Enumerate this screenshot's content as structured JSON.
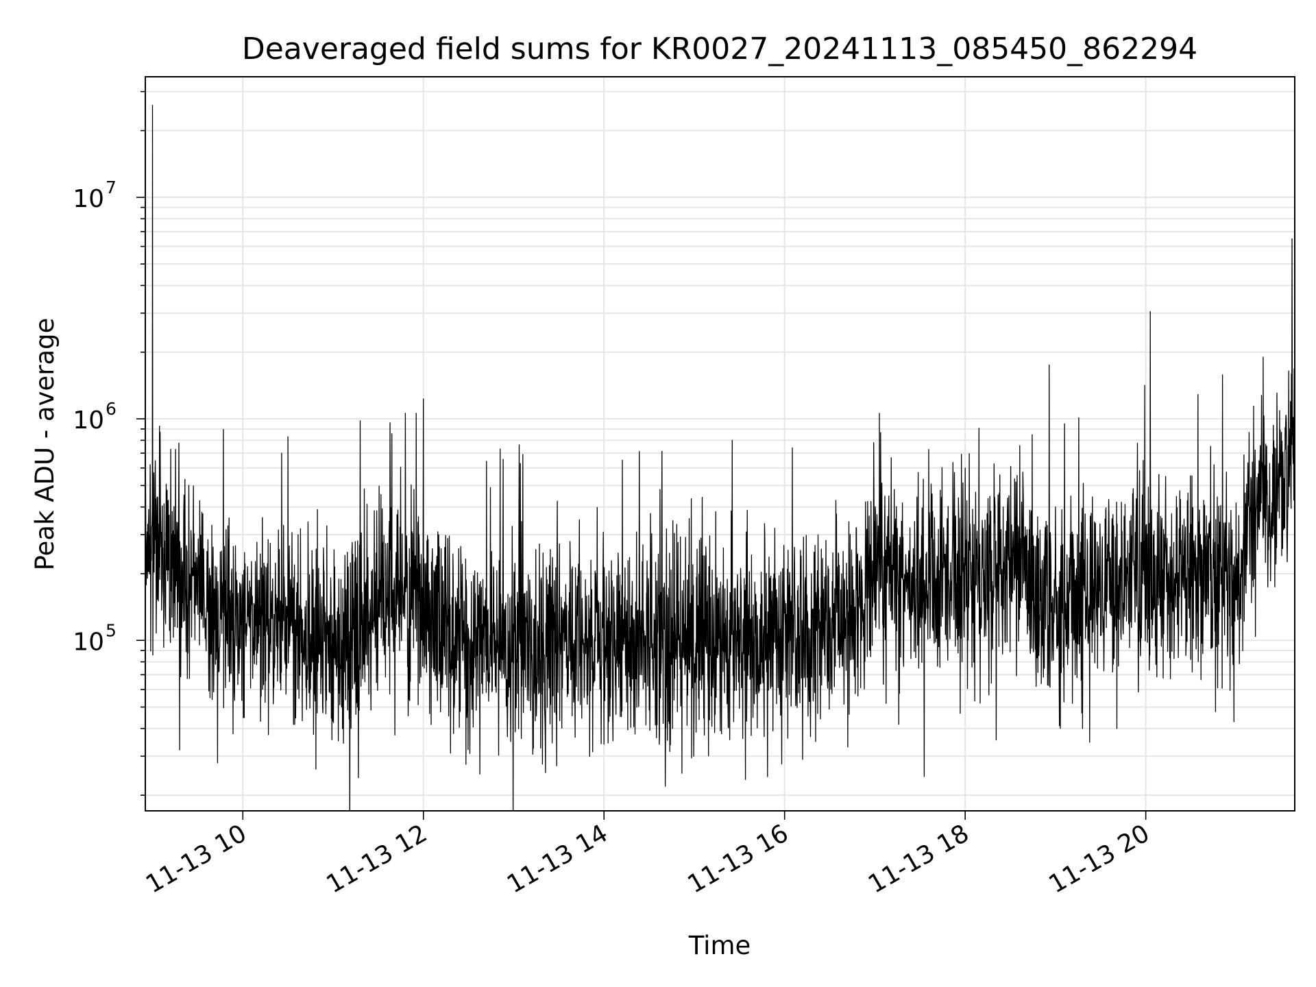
{
  "chart_data": {
    "type": "line",
    "title": "Deaveraged field sums for KR0027_20241113_085450_862294",
    "xlabel": "Time",
    "ylabel": "Peak ADU - average",
    "yscale": "log",
    "ylim": [
      17000,
      35000000
    ],
    "xlim": [
      8.92,
      21.65
    ],
    "grid": true,
    "colors": {
      "line": "#000000",
      "grid": "#e5e5e5"
    },
    "x_ticks": [
      {
        "value": 10,
        "label": "11-13 10"
      },
      {
        "value": 12,
        "label": "11-13 12"
      },
      {
        "value": 14,
        "label": "11-13 14"
      },
      {
        "value": 16,
        "label": "11-13 16"
      },
      {
        "value": 18,
        "label": "11-13 18"
      },
      {
        "value": 20,
        "label": "11-13 20"
      }
    ],
    "y_ticks": [
      {
        "value": 100000,
        "base": "10",
        "exp": "5"
      },
      {
        "value": 1000000,
        "base": "10",
        "exp": "6"
      },
      {
        "value": 10000000,
        "base": "10",
        "exp": "7"
      }
    ],
    "series": [
      {
        "x_unit": "hours on 11-13",
        "x": [
          8.92,
          9.0,
          9.5,
          10.0,
          10.5,
          11.0,
          11.5,
          12.0,
          12.5,
          13.0,
          13.5,
          14.0,
          14.5,
          15.0,
          15.5,
          16.0,
          16.5,
          16.9,
          17.0,
          17.5,
          18.0,
          18.5,
          19.0,
          19.5,
          20.0,
          20.5,
          21.0,
          21.1,
          21.2,
          21.4,
          21.65
        ],
        "values": [
          250000,
          280000,
          160000,
          120000,
          110000,
          95000,
          140000,
          150000,
          100000,
          95000,
          100000,
          95000,
          100000,
          95000,
          100000,
          100000,
          120000,
          160000,
          250000,
          170000,
          200000,
          220000,
          150000,
          170000,
          190000,
          190000,
          190000,
          280000,
          400000,
          500000,
          600000
        ]
      }
    ],
    "spikes": [
      {
        "x": 9.0,
        "y": 26000000
      },
      {
        "x": 9.72,
        "y": 900000
      },
      {
        "x": 10.43,
        "y": 700000
      },
      {
        "x": 10.5,
        "y": 830000
      },
      {
        "x": 11.3,
        "y": 980000
      },
      {
        "x": 11.63,
        "y": 960000
      },
      {
        "x": 11.8,
        "y": 1060000
      },
      {
        "x": 11.92,
        "y": 1060000
      },
      {
        "x": 12.0,
        "y": 1230000
      },
      {
        "x": 12.85,
        "y": 730000
      },
      {
        "x": 14.62,
        "y": 480000
      },
      {
        "x": 15.42,
        "y": 800000
      },
      {
        "x": 17.05,
        "y": 1060000
      },
      {
        "x": 18.0,
        "y": 600000
      },
      {
        "x": 18.93,
        "y": 1750000
      },
      {
        "x": 19.1,
        "y": 950000
      },
      {
        "x": 20.05,
        "y": 3050000
      },
      {
        "x": 20.85,
        "y": 1580000
      },
      {
        "x": 21.3,
        "y": 1900000
      },
      {
        "x": 21.62,
        "y": 6500000
      }
    ],
    "dips": [
      {
        "x": 9.3,
        "y": 32000
      },
      {
        "x": 9.72,
        "y": 28000
      },
      {
        "x": 11.28,
        "y": 24000
      },
      {
        "x": 12.3,
        "y": 31000
      },
      {
        "x": 14.0,
        "y": 34000
      },
      {
        "x": 16.2,
        "y": 29000
      },
      {
        "x": 16.7,
        "y": 33000
      },
      {
        "x": 19.3,
        "y": 40000
      },
      {
        "x": 19.68,
        "y": 40000
      }
    ]
  }
}
